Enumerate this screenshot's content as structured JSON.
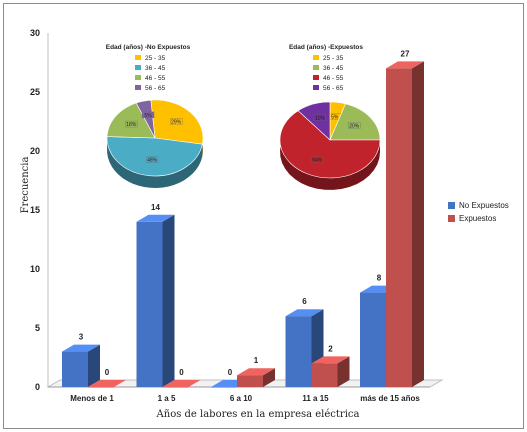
{
  "chart_data": [
    {
      "type": "bar",
      "title": "",
      "xlabel": "Años de labores en la empresa eléctrica",
      "ylabel": "Frecuencia",
      "ylim": [
        0,
        30
      ],
      "yticks": [
        0,
        5,
        10,
        15,
        20,
        25,
        30
      ],
      "categories": [
        "Menos de 1",
        "1 a 5",
        "6 a 10",
        "11 a 15",
        "más de 15 años"
      ],
      "series": [
        {
          "name": "No Expuestos",
          "color": "#4472c4",
          "values": [
            3,
            14,
            0,
            6,
            8
          ]
        },
        {
          "name": "Expuestos",
          "color": "#c0504d",
          "values": [
            0,
            0,
            1,
            2,
            27
          ]
        }
      ],
      "legend_position": "right"
    },
    {
      "type": "pie",
      "title": "Edad (años) -No Expuestos",
      "labels": [
        "25 - 35",
        "36 - 45",
        "46 - 55",
        "56 - 65"
      ],
      "colors": [
        "#ffc000",
        "#4bacc6",
        "#9bbb59",
        "#8064a2"
      ],
      "values": [
        29,
        48,
        18,
        5
      ],
      "data_labels": [
        "29%",
        "48%",
        "18%",
        "5%"
      ]
    },
    {
      "type": "pie",
      "title": "Edad (años) -Expuestos",
      "labels": [
        "25 - 35",
        "36 - 45",
        "46 - 55",
        "56 - 65"
      ],
      "colors": [
        "#ffc000",
        "#9bbb59",
        "#c0232c",
        "#7030a0"
      ],
      "values": [
        5,
        20,
        64,
        11
      ],
      "data_labels": [
        "5%",
        "20%",
        "64%",
        "11%"
      ]
    }
  ]
}
